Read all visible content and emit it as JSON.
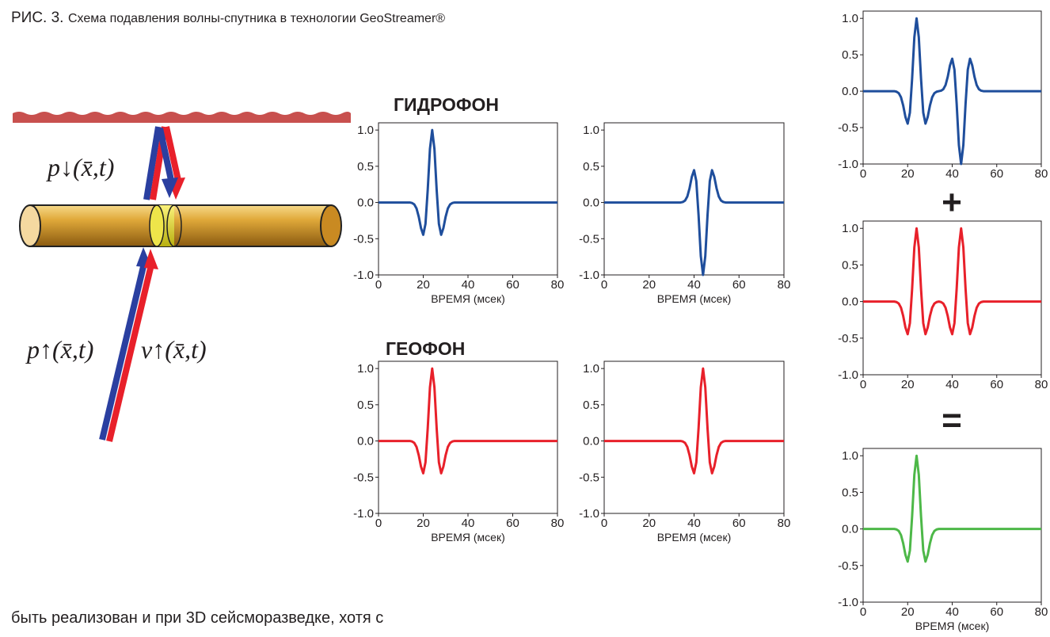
{
  "header": {
    "figure_label": "РИС. 3.",
    "title": "Схема подавления волны-спутника в технологии GeoStreamer®"
  },
  "diagram": {
    "down_label": "p↓(x̄,t)",
    "up_pressure_label": "p↑(x̄,t)",
    "up_velocity_label": "v↑(x̄,t)"
  },
  "groups": {
    "hydrophone": "ГИДРОФОН",
    "geophone": "ГЕОФОН",
    "plus": "+",
    "equals": "="
  },
  "body_text": "быть реализован и при 3D сейсморазведке, хотя с",
  "chart_data": [
    {
      "type": "line",
      "color": "#1f4e9c",
      "xlabel": "ВРЕМЯ (мсек)",
      "xlim": [
        0,
        80
      ],
      "ylim": [
        -1,
        1.1
      ],
      "xticks": [
        0,
        20,
        40,
        60,
        80
      ],
      "yticks": [
        {
          "value": -1,
          "label": "-1.0"
        },
        -0.5,
        {
          "value": 0,
          "label": "0.0"
        },
        0.5,
        {
          "value": 1,
          "label": "1.0"
        }
      ],
      "x": [
        0,
        10,
        14,
        15,
        16,
        17,
        18,
        19,
        20,
        21,
        22,
        23,
        24,
        25,
        26,
        27,
        28,
        29,
        30,
        31,
        32,
        33,
        34,
        40,
        80
      ],
      "values": [
        0,
        0,
        0,
        -0.007,
        -0.027,
        -0.083,
        -0.198,
        -0.354,
        -0.446,
        -0.295,
        0.173,
        0.74,
        1,
        0.74,
        0.173,
        -0.295,
        -0.446,
        -0.354,
        -0.198,
        -0.083,
        -0.027,
        -0.007,
        0,
        0,
        0
      ]
    },
    {
      "type": "line",
      "color": "#1f4e9c",
      "xlabel": "ВРЕМЯ (мсек)",
      "xlim": [
        0,
        80
      ],
      "ylim": [
        -1,
        1.1
      ],
      "xticks": [
        0,
        20,
        40,
        60,
        80
      ],
      "yticks": [
        {
          "value": -1,
          "label": "-1.0"
        },
        -0.5,
        {
          "value": 0,
          "label": "0.0"
        },
        0.5,
        {
          "value": 1,
          "label": "1.0"
        }
      ],
      "x": [
        0,
        30,
        34,
        35,
        36,
        37,
        38,
        39,
        40,
        41,
        42,
        43,
        44,
        45,
        46,
        47,
        48,
        49,
        50,
        51,
        52,
        53,
        54,
        60,
        80
      ],
      "values": [
        0,
        0,
        0,
        0.007,
        0.027,
        0.083,
        0.198,
        0.354,
        0.446,
        0.295,
        -0.173,
        -0.74,
        -1,
        -0.74,
        -0.173,
        0.295,
        0.446,
        0.354,
        0.198,
        0.083,
        0.027,
        0.007,
        0,
        0,
        0
      ]
    },
    {
      "type": "line",
      "color": "#e8202a",
      "xlabel": "ВРЕМЯ (мсек)",
      "xlim": [
        0,
        80
      ],
      "ylim": [
        -1,
        1.1
      ],
      "xticks": [
        0,
        20,
        40,
        60,
        80
      ],
      "yticks": [
        {
          "value": -1,
          "label": "-1.0"
        },
        -0.5,
        {
          "value": 0,
          "label": "0.0"
        },
        0.5,
        {
          "value": 1,
          "label": "1.0"
        }
      ],
      "x": [
        0,
        10,
        14,
        15,
        16,
        17,
        18,
        19,
        20,
        21,
        22,
        23,
        24,
        25,
        26,
        27,
        28,
        29,
        30,
        31,
        32,
        33,
        34,
        40,
        80
      ],
      "values": [
        0,
        0,
        0,
        -0.007,
        -0.027,
        -0.083,
        -0.198,
        -0.354,
        -0.446,
        -0.295,
        0.173,
        0.74,
        1,
        0.74,
        0.173,
        -0.295,
        -0.446,
        -0.354,
        -0.198,
        -0.083,
        -0.027,
        -0.007,
        0,
        0,
        0
      ]
    },
    {
      "type": "line",
      "color": "#e8202a",
      "xlabel": "ВРЕМЯ (мсек)",
      "xlim": [
        0,
        80
      ],
      "ylim": [
        -1,
        1.1
      ],
      "xticks": [
        0,
        20,
        40,
        60,
        80
      ],
      "yticks": [
        {
          "value": -1,
          "label": "-1.0"
        },
        -0.5,
        {
          "value": 0,
          "label": "0.0"
        },
        0.5,
        {
          "value": 1,
          "label": "1.0"
        }
      ],
      "x": [
        0,
        30,
        34,
        35,
        36,
        37,
        38,
        39,
        40,
        41,
        42,
        43,
        44,
        45,
        46,
        47,
        48,
        49,
        50,
        51,
        52,
        53,
        54,
        60,
        80
      ],
      "values": [
        0,
        0,
        0,
        -0.007,
        -0.027,
        -0.083,
        -0.198,
        -0.354,
        -0.446,
        -0.295,
        0.173,
        0.74,
        1,
        0.74,
        0.173,
        -0.295,
        -0.446,
        -0.354,
        -0.198,
        -0.083,
        -0.027,
        -0.007,
        0,
        0,
        0
      ]
    },
    {
      "type": "line",
      "color": "#1f4e9c",
      "xlim": [
        0,
        80
      ],
      "ylim": [
        -1,
        1.1
      ],
      "xticks": [
        0,
        20,
        40,
        60,
        80
      ],
      "yticks": [
        {
          "value": -1,
          "label": "-1.0"
        },
        -0.5,
        {
          "value": 0,
          "label": "0.0"
        },
        0.5,
        {
          "value": 1,
          "label": "1.0"
        }
      ],
      "x": [
        0,
        10,
        14,
        15,
        16,
        17,
        18,
        19,
        20,
        21,
        22,
        23,
        24,
        25,
        26,
        27,
        28,
        29,
        30,
        31,
        32,
        33,
        34,
        35,
        36,
        37,
        38,
        39,
        40,
        41,
        42,
        43,
        44,
        45,
        46,
        47,
        48,
        49,
        50,
        51,
        52,
        53,
        54,
        60,
        80
      ],
      "values": [
        0,
        0,
        0,
        -0.007,
        -0.027,
        -0.083,
        -0.198,
        -0.354,
        -0.446,
        -0.295,
        0.173,
        0.74,
        1,
        0.74,
        0.173,
        -0.295,
        -0.446,
        -0.354,
        -0.198,
        -0.083,
        -0.027,
        -0.007,
        0,
        0.007,
        0.027,
        0.083,
        0.198,
        0.354,
        0.446,
        0.295,
        -0.173,
        -0.74,
        -1,
        -0.74,
        -0.173,
        0.295,
        0.446,
        0.354,
        0.198,
        0.083,
        0.027,
        0.007,
        0,
        0,
        0
      ]
    },
    {
      "type": "line",
      "color": "#e8202a",
      "xlim": [
        0,
        80
      ],
      "ylim": [
        -1,
        1.1
      ],
      "xticks": [
        0,
        20,
        40,
        60,
        80
      ],
      "yticks": [
        {
          "value": -1,
          "label": "-1.0"
        },
        -0.5,
        {
          "value": 0,
          "label": "0.0"
        },
        0.5,
        {
          "value": 1,
          "label": "1.0"
        }
      ],
      "x": [
        0,
        10,
        14,
        15,
        16,
        17,
        18,
        19,
        20,
        21,
        22,
        23,
        24,
        25,
        26,
        27,
        28,
        29,
        30,
        31,
        32,
        33,
        34,
        35,
        36,
        37,
        38,
        39,
        40,
        41,
        42,
        43,
        44,
        45,
        46,
        47,
        48,
        49,
        50,
        51,
        52,
        53,
        54,
        60,
        80
      ],
      "values": [
        0,
        0,
        0,
        -0.007,
        -0.027,
        -0.083,
        -0.198,
        -0.354,
        -0.446,
        -0.295,
        0.173,
        0.74,
        1,
        0.74,
        0.173,
        -0.295,
        -0.446,
        -0.354,
        -0.198,
        -0.083,
        -0.027,
        -0.007,
        0,
        -0.007,
        -0.027,
        -0.083,
        -0.198,
        -0.354,
        -0.446,
        -0.295,
        0.173,
        0.74,
        1,
        0.74,
        0.173,
        -0.295,
        -0.446,
        -0.354,
        -0.198,
        -0.083,
        -0.027,
        -0.007,
        0,
        0,
        0
      ]
    },
    {
      "type": "line",
      "color": "#4db848",
      "xlabel": "ВРЕМЯ (мсек)",
      "xlim": [
        0,
        80
      ],
      "ylim": [
        -1,
        1.1
      ],
      "xticks": [
        0,
        20,
        40,
        60,
        80
      ],
      "yticks": [
        {
          "value": -1,
          "label": "-1.0"
        },
        -0.5,
        {
          "value": 0,
          "label": "0.0"
        },
        0.5,
        {
          "value": 1,
          "label": "1.0"
        }
      ],
      "x": [
        0,
        10,
        14,
        15,
        16,
        17,
        18,
        19,
        20,
        21,
        22,
        23,
        24,
        25,
        26,
        27,
        28,
        29,
        30,
        31,
        32,
        33,
        34,
        40,
        80
      ],
      "values": [
        0,
        0,
        0,
        -0.007,
        -0.027,
        -0.083,
        -0.198,
        -0.354,
        -0.446,
        -0.295,
        0.173,
        0.74,
        1,
        0.74,
        0.173,
        -0.295,
        -0.446,
        -0.354,
        -0.198,
        -0.083,
        -0.027,
        -0.007,
        0,
        0,
        0
      ]
    }
  ]
}
